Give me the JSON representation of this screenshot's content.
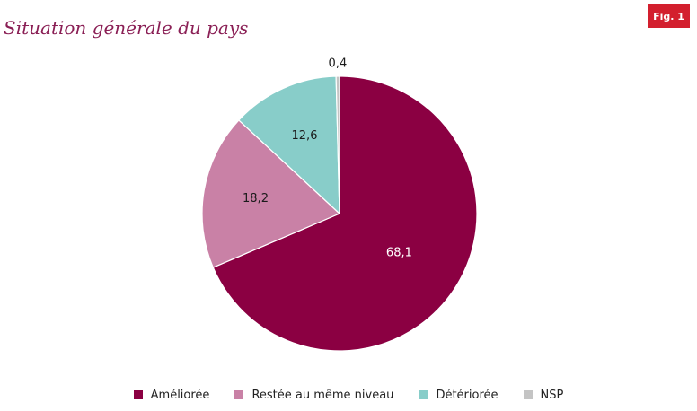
{
  "figure": {
    "badge": "Fig. 1"
  },
  "chart_data": {
    "type": "pie",
    "title": "Situation générale du pays",
    "categories": [
      "Améliorée",
      "Restée au même niveau",
      "Détériorée",
      "NSP"
    ],
    "values": [
      68.1,
      18.2,
      12.6,
      0.4
    ],
    "value_labels": [
      "68,1",
      "18,2",
      "12,6",
      "0,4"
    ],
    "colors": [
      "#8b0042",
      "#c981a6",
      "#88cdc9",
      "#c4c4c4"
    ],
    "label_colors": [
      "#ffffff",
      "#1a1a1a",
      "#1a1a1a",
      "#1a1a1a"
    ],
    "start": "12 o'clock, clockwise",
    "legend_position": "bottom"
  }
}
